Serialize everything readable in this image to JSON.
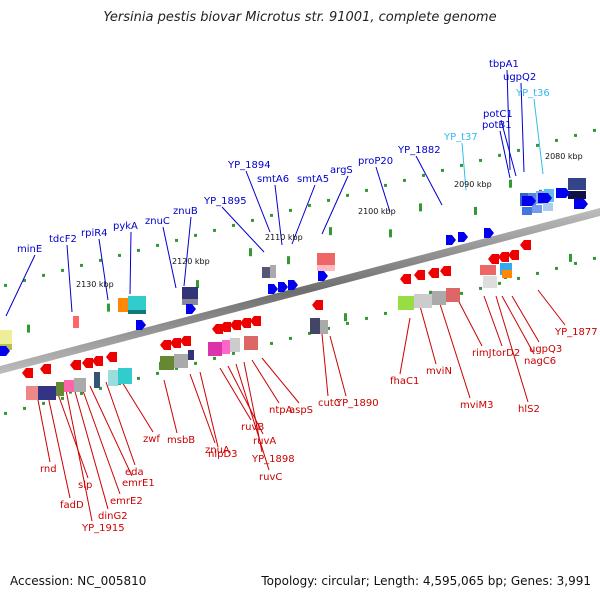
{
  "title": "Yersinia pestis biovar Microtus str. 91001, complete genome",
  "accession": "Accession: NC_005810",
  "topology": "Topology: circular; Length: 4,595,065 bp; Genes: 3,991",
  "colors": {
    "top_labels": "#0000cc",
    "trna_labels": "#33bbee",
    "bottom_labels": "#cc0000",
    "backbone": "#888888",
    "tick": "#339933"
  },
  "scale_labels": [
    "2080 kbp",
    "2090 kbp",
    "2100 kbp",
    "2110 kbp",
    "2120 kbp",
    "2130 kbp"
  ],
  "top_labels": [
    "tbpA1",
    "ugpQ2",
    "YP_t36",
    "potC1",
    "YP_t37",
    "potB1",
    "YP_1882",
    "proP20",
    "argS",
    "YP_1894",
    "smtA6",
    "smtA5",
    "YP_1895",
    "znuB",
    "znuC",
    "pykA",
    "rpiR4",
    "tdcF2",
    "minE"
  ],
  "bottom_labels": [
    "YP_1877",
    "ugpQ3",
    "nagC6",
    "hlS2",
    "torD2",
    "rimJ",
    "mviM3",
    "mviN",
    "fhaC1",
    "cutC",
    "YP_1890",
    "aspS",
    "ntpA",
    "YP_1898",
    "ruvC",
    "ruvA",
    "ruvB",
    "nlpD3",
    "znuA",
    "msbB",
    "zwf",
    "eda",
    "emrE1",
    "emrE2",
    "dinG2",
    "YP_1915",
    "slp",
    "fadD",
    "rnd"
  ]
}
